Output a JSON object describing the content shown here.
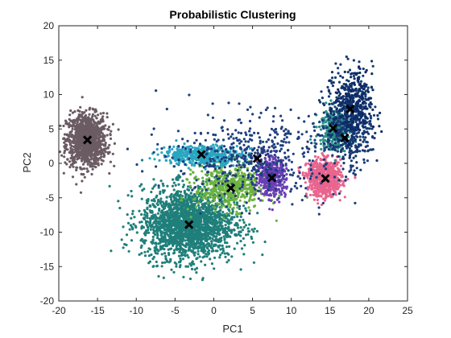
{
  "chart_data": {
    "type": "scatter",
    "title": "Probabilistic Clustering",
    "xlabel": "PC1",
    "ylabel": "PC2",
    "xlim": [
      -20,
      25
    ],
    "ylim": [
      -20,
      20
    ],
    "xticks": [
      -20,
      -15,
      -10,
      -5,
      0,
      5,
      10,
      15,
      20,
      25
    ],
    "yticks": [
      -20,
      -15,
      -10,
      -5,
      0,
      5,
      10,
      15,
      20
    ],
    "grid": false,
    "legend": "none",
    "clusters": [
      {
        "color": "#6b5b62",
        "center": [
          -16.4,
          3.4
        ],
        "spread": [
          1.3,
          1.9
        ],
        "count": 1100,
        "centroid": [
          -16.3,
          3.4
        ]
      },
      {
        "color": "#1f7f7a",
        "center": [
          -3.3,
          -8.8
        ],
        "spread": [
          3.0,
          2.6
        ],
        "count": 2000,
        "centroid": [
          -3.2,
          -8.9
        ]
      },
      {
        "color": "#6cb33f",
        "center": [
          2.2,
          -3.5
        ],
        "spread": [
          2.3,
          1.6
        ],
        "count": 500,
        "centroid": [
          2.2,
          -3.6
        ]
      },
      {
        "color": "#2aa6c0",
        "center": [
          -1.6,
          1.2
        ],
        "spread": [
          2.6,
          0.7
        ],
        "count": 500,
        "centroid": [
          -1.6,
          1.3
        ]
      },
      {
        "color": "#6a3fb5",
        "center": [
          7.5,
          -2.0
        ],
        "spread": [
          0.9,
          1.4
        ],
        "count": 450,
        "centroid": [
          7.5,
          -2.1
        ]
      },
      {
        "color": "#e8658e",
        "center": [
          14.3,
          -2.2
        ],
        "spread": [
          1.1,
          1.3
        ],
        "count": 700,
        "centroid": [
          14.4,
          -2.2
        ]
      },
      {
        "color": "#2b8f8a",
        "center": [
          15.6,
          5.0
        ],
        "spread": [
          1.0,
          1.6
        ],
        "count": 350,
        "centroid": [
          15.4,
          5.1
        ]
      },
      {
        "color": "#1f3f7f",
        "center": [
          5.5,
          1.0
        ],
        "spread": [
          5.5,
          3.0
        ],
        "count": 500,
        "centroid": [
          5.6,
          0.7
        ]
      },
      {
        "color": "#163a72",
        "center": [
          17.5,
          6.5
        ],
        "spread": [
          1.5,
          3.5
        ],
        "count": 500,
        "centroid": [
          16.9,
          3.7
        ]
      },
      {
        "color": "#0d2b66",
        "center": [
          18.0,
          8.0
        ],
        "spread": [
          1.2,
          2.5
        ],
        "count": 250,
        "centroid": [
          17.6,
          7.9
        ]
      }
    ]
  }
}
